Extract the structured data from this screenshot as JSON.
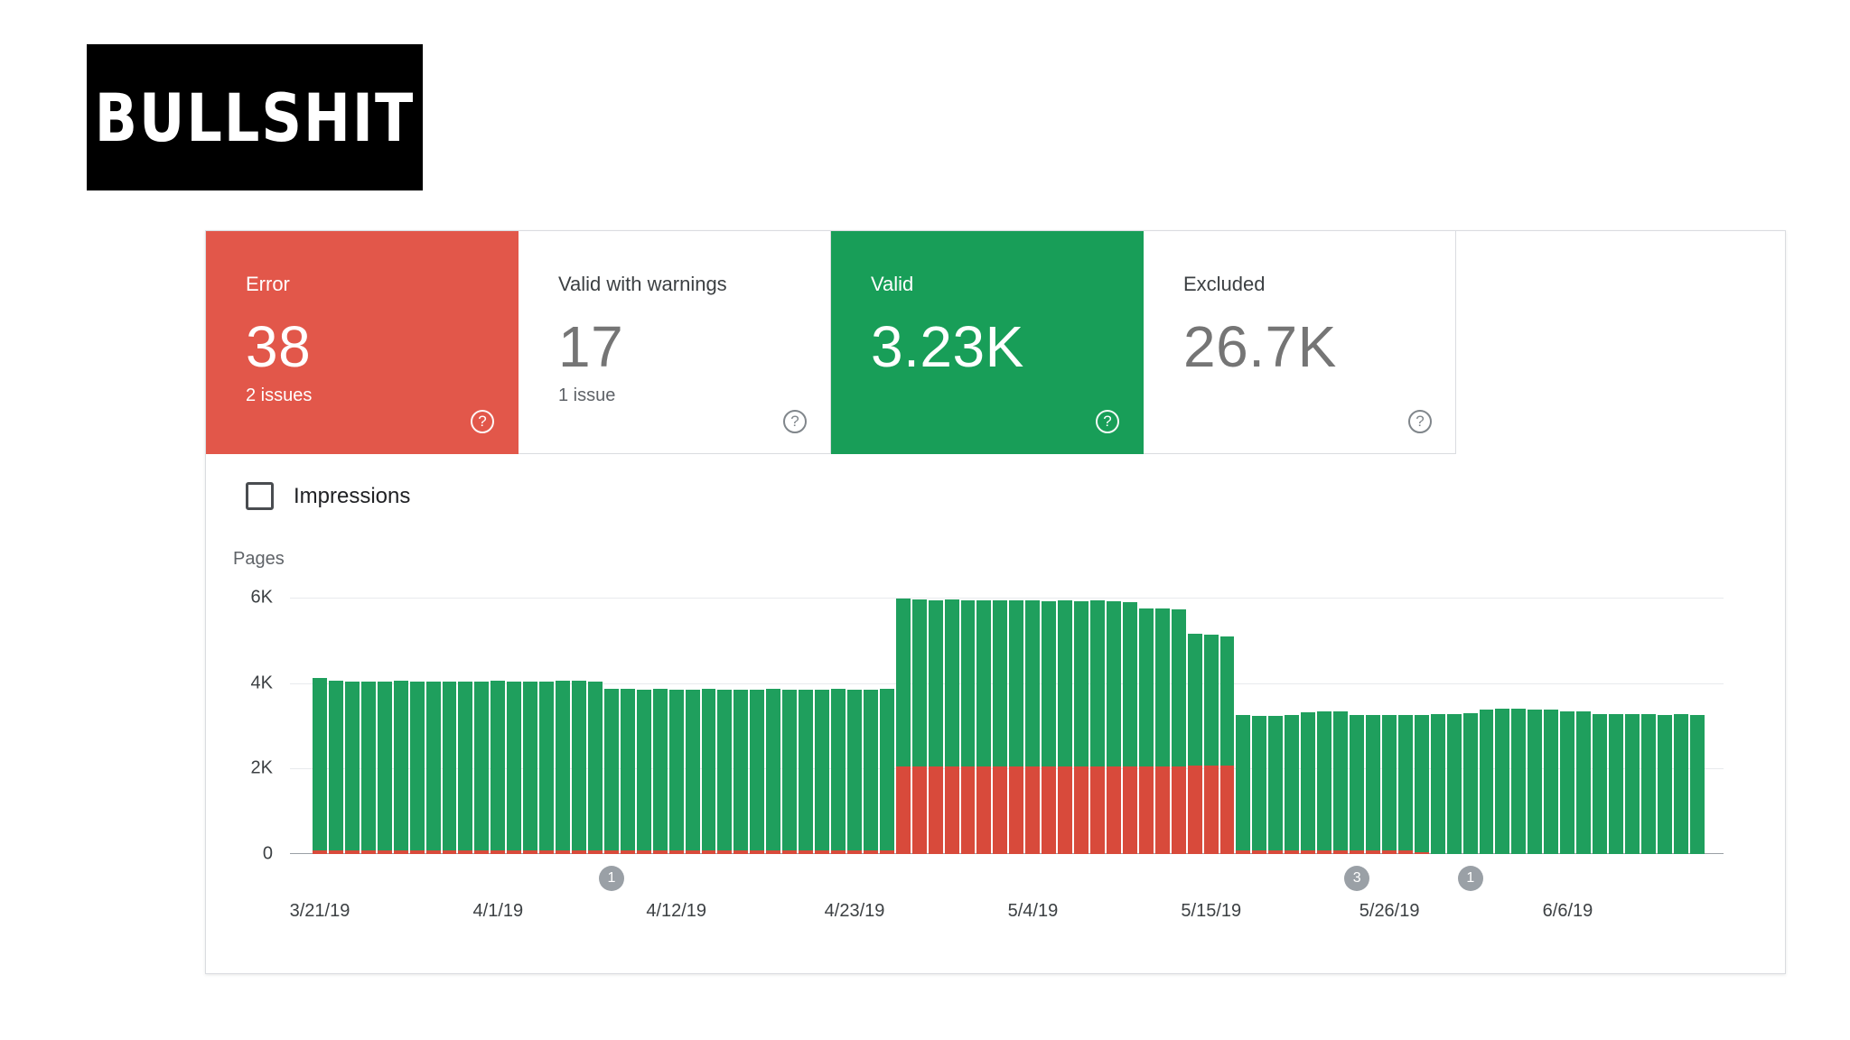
{
  "logo": {
    "text": "Bullshit"
  },
  "icons": {
    "help": "?"
  },
  "summary_cards": [
    {
      "id": "error",
      "label": "Error",
      "value": "38",
      "sub": "2 issues",
      "selected": true,
      "color": "#e2574a"
    },
    {
      "id": "valid-with-warnings",
      "label": "Valid with warnings",
      "value": "17",
      "sub": "1 issue",
      "selected": false,
      "color": "#ffffff"
    },
    {
      "id": "valid",
      "label": "Valid",
      "value": "3.23K",
      "sub": "",
      "selected": true,
      "color": "#189e58"
    },
    {
      "id": "excluded",
      "label": "Excluded",
      "value": "26.7K",
      "sub": "",
      "selected": false,
      "color": "#ffffff"
    }
  ],
  "impressions_toggle": {
    "label": "Impressions",
    "checked": false
  },
  "chart_data": {
    "type": "bar",
    "stacked": true,
    "title": "",
    "ylabel": "Pages",
    "ylim": [
      0,
      6000
    ],
    "yticks": [
      "6K",
      "4K",
      "2K",
      "0"
    ],
    "grid": true,
    "legend": "none",
    "series_colors": {
      "error": "#d84a3b",
      "valid": "#1f9f5d"
    },
    "x_tick_labels": [
      "3/21/19",
      "4/1/19",
      "4/12/19",
      "4/23/19",
      "5/4/19",
      "5/15/19",
      "5/26/19",
      "6/6/19"
    ],
    "x_tick_indices": [
      0,
      11,
      22,
      33,
      44,
      55,
      66,
      77
    ],
    "annotations": [
      {
        "index": 18,
        "label": "1"
      },
      {
        "index": 64,
        "label": "3"
      },
      {
        "index": 71,
        "label": "1"
      }
    ],
    "bars": [
      {
        "date": "3/21/19",
        "error": 80,
        "valid": 4030
      },
      {
        "date": "3/22/19",
        "error": 80,
        "valid": 3980
      },
      {
        "date": "3/23/19",
        "error": 80,
        "valid": 3960
      },
      {
        "date": "3/24/19",
        "error": 80,
        "valid": 3965
      },
      {
        "date": "3/25/19",
        "error": 80,
        "valid": 3960
      },
      {
        "date": "3/26/19",
        "error": 80,
        "valid": 3970
      },
      {
        "date": "3/27/19",
        "error": 80,
        "valid": 3960
      },
      {
        "date": "3/28/19",
        "error": 80,
        "valid": 3965
      },
      {
        "date": "3/29/19",
        "error": 80,
        "valid": 3960
      },
      {
        "date": "3/30/19",
        "error": 80,
        "valid": 3955
      },
      {
        "date": "3/31/19",
        "error": 80,
        "valid": 3960
      },
      {
        "date": "4/1/19",
        "error": 80,
        "valid": 3970
      },
      {
        "date": "4/2/19",
        "error": 80,
        "valid": 3960
      },
      {
        "date": "4/3/19",
        "error": 80,
        "valid": 3965
      },
      {
        "date": "4/4/19",
        "error": 80,
        "valid": 3960
      },
      {
        "date": "4/5/19",
        "error": 80,
        "valid": 3970
      },
      {
        "date": "4/6/19",
        "error": 80,
        "valid": 3975
      },
      {
        "date": "4/7/19",
        "error": 80,
        "valid": 3960
      },
      {
        "date": "4/8/19",
        "error": 80,
        "valid": 3790
      },
      {
        "date": "4/9/19",
        "error": 80,
        "valid": 3780
      },
      {
        "date": "4/10/19",
        "error": 80,
        "valid": 3775
      },
      {
        "date": "4/11/19",
        "error": 80,
        "valid": 3780
      },
      {
        "date": "4/12/19",
        "error": 80,
        "valid": 3770
      },
      {
        "date": "4/13/19",
        "error": 80,
        "valid": 3775
      },
      {
        "date": "4/14/19",
        "error": 80,
        "valid": 3780
      },
      {
        "date": "4/15/19",
        "error": 80,
        "valid": 3770
      },
      {
        "date": "4/16/19",
        "error": 80,
        "valid": 3775
      },
      {
        "date": "4/17/19",
        "error": 80,
        "valid": 3770
      },
      {
        "date": "4/18/19",
        "error": 80,
        "valid": 3780
      },
      {
        "date": "4/19/19",
        "error": 80,
        "valid": 3775
      },
      {
        "date": "4/20/19",
        "error": 80,
        "valid": 3770
      },
      {
        "date": "4/21/19",
        "error": 80,
        "valid": 3775
      },
      {
        "date": "4/22/19",
        "error": 80,
        "valid": 3780
      },
      {
        "date": "4/23/19",
        "error": 80,
        "valid": 3775
      },
      {
        "date": "4/24/19",
        "error": 80,
        "valid": 3770
      },
      {
        "date": "4/25/19",
        "error": 80,
        "valid": 3780
      },
      {
        "date": "4/26/19",
        "error": 2050,
        "valid": 3920
      },
      {
        "date": "4/27/19",
        "error": 2050,
        "valid": 3900
      },
      {
        "date": "4/28/19",
        "error": 2050,
        "valid": 3890
      },
      {
        "date": "4/29/19",
        "error": 2050,
        "valid": 3900
      },
      {
        "date": "4/30/19",
        "error": 2050,
        "valid": 3890
      },
      {
        "date": "5/1/19",
        "error": 2050,
        "valid": 3880
      },
      {
        "date": "5/2/19",
        "error": 2050,
        "valid": 3890
      },
      {
        "date": "5/3/19",
        "error": 2050,
        "valid": 3880
      },
      {
        "date": "5/4/19",
        "error": 2050,
        "valid": 3890
      },
      {
        "date": "5/5/19",
        "error": 2050,
        "valid": 3870
      },
      {
        "date": "5/6/19",
        "error": 2050,
        "valid": 3880
      },
      {
        "date": "5/7/19",
        "error": 2050,
        "valid": 3870
      },
      {
        "date": "5/8/19",
        "error": 2050,
        "valid": 3880
      },
      {
        "date": "5/9/19",
        "error": 2050,
        "valid": 3860
      },
      {
        "date": "5/10/19",
        "error": 2060,
        "valid": 3840
      },
      {
        "date": "5/11/19",
        "error": 2060,
        "valid": 3690
      },
      {
        "date": "5/12/19",
        "error": 2060,
        "valid": 3680
      },
      {
        "date": "5/13/19",
        "error": 2060,
        "valid": 3670
      },
      {
        "date": "5/14/19",
        "error": 2070,
        "valid": 3080
      },
      {
        "date": "5/15/19",
        "error": 2070,
        "valid": 3060
      },
      {
        "date": "5/16/19",
        "error": 2070,
        "valid": 3030
      },
      {
        "date": "5/17/19",
        "error": 80,
        "valid": 3170
      },
      {
        "date": "5/18/19",
        "error": 80,
        "valid": 3150
      },
      {
        "date": "5/19/19",
        "error": 80,
        "valid": 3160
      },
      {
        "date": "5/20/19",
        "error": 80,
        "valid": 3170
      },
      {
        "date": "5/21/19",
        "error": 80,
        "valid": 3240
      },
      {
        "date": "5/22/19",
        "error": 80,
        "valid": 3260
      },
      {
        "date": "5/23/19",
        "error": 80,
        "valid": 3250
      },
      {
        "date": "5/24/19",
        "error": 80,
        "valid": 3180
      },
      {
        "date": "5/25/19",
        "error": 80,
        "valid": 3170
      },
      {
        "date": "5/26/19",
        "error": 80,
        "valid": 3180
      },
      {
        "date": "5/27/19",
        "error": 80,
        "valid": 3170
      },
      {
        "date": "5/28/19",
        "error": 40,
        "valid": 3220
      },
      {
        "date": "5/29/19",
        "error": 0,
        "valid": 3270
      },
      {
        "date": "5/30/19",
        "error": 0,
        "valid": 3280
      },
      {
        "date": "5/31/19",
        "error": 0,
        "valid": 3300
      },
      {
        "date": "6/1/19",
        "error": 0,
        "valid": 3390
      },
      {
        "date": "6/2/19",
        "error": 0,
        "valid": 3400
      },
      {
        "date": "6/3/19",
        "error": 0,
        "valid": 3400
      },
      {
        "date": "6/4/19",
        "error": 0,
        "valid": 3390
      },
      {
        "date": "6/5/19",
        "error": 0,
        "valid": 3380
      },
      {
        "date": "6/6/19",
        "error": 0,
        "valid": 3340
      },
      {
        "date": "6/7/19",
        "error": 0,
        "valid": 3330
      },
      {
        "date": "6/8/19",
        "error": 0,
        "valid": 3280
      },
      {
        "date": "6/9/19",
        "error": 0,
        "valid": 3270
      },
      {
        "date": "6/10/19",
        "error": 0,
        "valid": 3280
      },
      {
        "date": "6/11/19",
        "error": 0,
        "valid": 3270
      },
      {
        "date": "6/12/19",
        "error": 0,
        "valid": 3260
      },
      {
        "date": "6/13/19",
        "error": 0,
        "valid": 3270
      },
      {
        "date": "6/14/19",
        "error": 0,
        "valid": 3260
      }
    ]
  }
}
